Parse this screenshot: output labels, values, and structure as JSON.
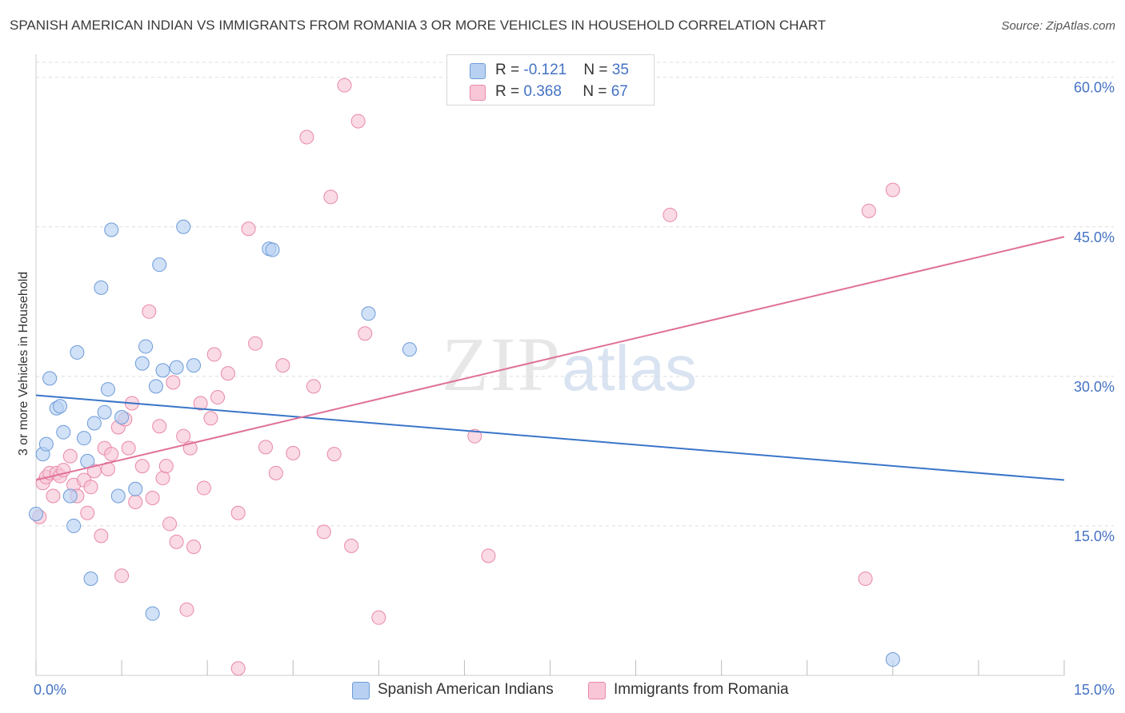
{
  "title": "SPANISH AMERICAN INDIAN VS IMMIGRANTS FROM ROMANIA 3 OR MORE VEHICLES IN HOUSEHOLD CORRELATION CHART",
  "source": "Source: ZipAtlas.com",
  "watermark": {
    "zip": "ZIP",
    "atlas": "atlas"
  },
  "legend": {
    "blue": {
      "r_label": "R = ",
      "r_value": "-0.121",
      "n_label": "N = ",
      "n_value": "35"
    },
    "pink": {
      "r_label": "R = ",
      "r_value": "0.368",
      "n_label": "N = ",
      "n_value": "67"
    }
  },
  "colors": {
    "blue_fill": "#b8d1f2",
    "blue_stroke": "#6d9bd8",
    "blue_line": "#3a75c8",
    "pink_fill": "#f8c6d6",
    "pink_stroke": "#e889a8",
    "pink_line": "#e07098",
    "axis_text": "#4472c4",
    "grid": "#dddddd"
  },
  "chart_data": {
    "type": "scatter",
    "title": "SPANISH AMERICAN INDIAN VS IMMIGRANTS FROM ROMANIA 3 OR MORE VEHICLES IN HOUSEHOLD CORRELATION CHART",
    "xlabel": "",
    "ylabel": "3 or more Vehicles in Household",
    "xlim": [
      0,
      15
    ],
    "ylim": [
      0,
      61.5
    ],
    "x_tick_labels": [
      "0.0%",
      "15.0%"
    ],
    "y_ticks": [
      15,
      30,
      45,
      60
    ],
    "y_tick_labels": [
      "15.0%",
      "30.0%",
      "45.0%",
      "60.0%"
    ],
    "series": [
      {
        "name": "Spanish American Indians",
        "trend": {
          "x0": 0,
          "y0": 28.1,
          "x1": 15,
          "y1": 19.6
        },
        "points": [
          [
            0.0,
            16.2
          ],
          [
            0.1,
            22.2
          ],
          [
            0.15,
            23.2
          ],
          [
            0.2,
            29.8
          ],
          [
            0.3,
            26.8
          ],
          [
            0.35,
            27.0
          ],
          [
            0.4,
            24.4
          ],
          [
            0.5,
            18.0
          ],
          [
            0.55,
            15.0
          ],
          [
            0.6,
            32.4
          ],
          [
            0.7,
            23.8
          ],
          [
            0.75,
            21.5
          ],
          [
            0.8,
            9.7
          ],
          [
            0.85,
            25.3
          ],
          [
            0.95,
            38.9
          ],
          [
            1.0,
            26.4
          ],
          [
            1.05,
            28.7
          ],
          [
            1.1,
            44.7
          ],
          [
            1.2,
            18.0
          ],
          [
            1.25,
            25.9
          ],
          [
            1.45,
            18.7
          ],
          [
            1.55,
            31.3
          ],
          [
            1.6,
            33.0
          ],
          [
            1.7,
            6.2
          ],
          [
            1.75,
            29.0
          ],
          [
            1.8,
            41.2
          ],
          [
            1.85,
            30.6
          ],
          [
            2.05,
            30.9
          ],
          [
            2.15,
            45.0
          ],
          [
            2.3,
            31.1
          ],
          [
            3.4,
            42.8
          ],
          [
            3.45,
            42.7
          ],
          [
            4.85,
            36.3
          ],
          [
            5.45,
            32.7
          ],
          [
            12.5,
            1.6
          ]
        ]
      },
      {
        "name": "Immigrants from Romania",
        "trend": {
          "x0": 0,
          "y0": 19.6,
          "x1": 15,
          "y1": 44.0
        },
        "points": [
          [
            0.05,
            15.9
          ],
          [
            0.1,
            19.3
          ],
          [
            0.15,
            19.9
          ],
          [
            0.2,
            20.3
          ],
          [
            0.25,
            18.0
          ],
          [
            0.3,
            20.3
          ],
          [
            0.35,
            20.0
          ],
          [
            0.4,
            20.6
          ],
          [
            0.5,
            22.0
          ],
          [
            0.55,
            19.1
          ],
          [
            0.6,
            18.0
          ],
          [
            0.7,
            19.6
          ],
          [
            0.75,
            16.3
          ],
          [
            0.8,
            18.9
          ],
          [
            0.85,
            20.5
          ],
          [
            0.95,
            14.0
          ],
          [
            1.0,
            22.8
          ],
          [
            1.05,
            20.7
          ],
          [
            1.1,
            22.2
          ],
          [
            1.2,
            24.9
          ],
          [
            1.25,
            10.0
          ],
          [
            1.3,
            25.7
          ],
          [
            1.35,
            22.8
          ],
          [
            1.4,
            27.3
          ],
          [
            1.45,
            17.4
          ],
          [
            1.55,
            21.0
          ],
          [
            1.65,
            36.5
          ],
          [
            1.7,
            17.8
          ],
          [
            1.8,
            25.0
          ],
          [
            1.85,
            19.8
          ],
          [
            1.9,
            21.0
          ],
          [
            1.95,
            15.2
          ],
          [
            2.0,
            29.4
          ],
          [
            2.05,
            13.4
          ],
          [
            2.15,
            24.0
          ],
          [
            2.2,
            6.6
          ],
          [
            2.25,
            22.8
          ],
          [
            2.3,
            12.9
          ],
          [
            2.4,
            27.3
          ],
          [
            2.45,
            18.8
          ],
          [
            2.55,
            25.8
          ],
          [
            2.6,
            32.2
          ],
          [
            2.65,
            27.9
          ],
          [
            2.8,
            30.3
          ],
          [
            2.95,
            16.3
          ],
          [
            2.95,
            0.7
          ],
          [
            3.1,
            44.8
          ],
          [
            3.2,
            33.3
          ],
          [
            3.35,
            22.9
          ],
          [
            3.5,
            20.3
          ],
          [
            3.6,
            31.1
          ],
          [
            3.75,
            22.3
          ],
          [
            3.95,
            54.0
          ],
          [
            4.05,
            29.0
          ],
          [
            4.2,
            14.4
          ],
          [
            4.3,
            48.0
          ],
          [
            4.35,
            22.2
          ],
          [
            4.5,
            59.2
          ],
          [
            4.6,
            13.0
          ],
          [
            4.7,
            55.6
          ],
          [
            4.8,
            34.3
          ],
          [
            5.0,
            5.8
          ],
          [
            6.4,
            24.0
          ],
          [
            6.6,
            12.0
          ],
          [
            9.25,
            46.2
          ],
          [
            12.1,
            9.7
          ],
          [
            12.15,
            46.6
          ],
          [
            12.5,
            48.7
          ]
        ]
      }
    ]
  },
  "legend_bottom": [
    "Spanish American Indians",
    "Immigrants from Romania"
  ]
}
